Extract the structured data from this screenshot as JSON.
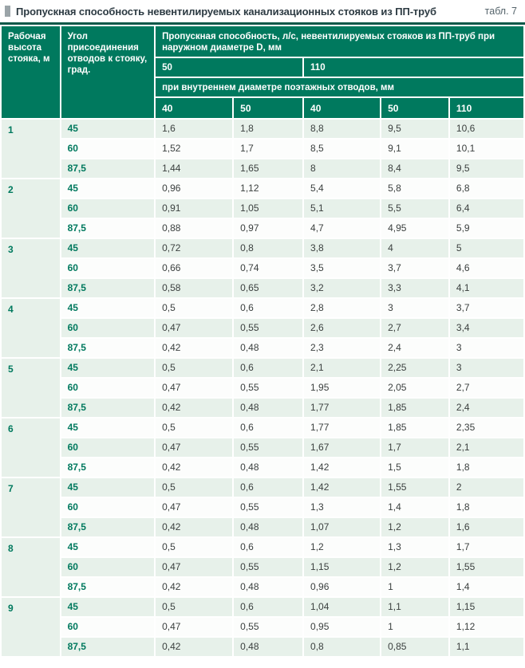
{
  "page": {
    "title": "Пропускная способность невентилируемых канализационных стояков из ПП-труб",
    "table_label": "табл. 7"
  },
  "colors": {
    "header_teal": "#00795E",
    "top_border_dark_teal": "#0A5848",
    "row_tint_green": "#E7F1EA",
    "accent_text_teal": "#00795E"
  },
  "table": {
    "col1_header": "Рабочая высота стояка, м",
    "col2_header": "Угол присоединения отводов к стояку, град.",
    "span_header": "Пропускная способность, л/с, невентилируемых стояков из ПП-труб при наружном диаметре D, мм",
    "diameter_groups": [
      {
        "label": "50",
        "span": 2
      },
      {
        "label": "110",
        "span": 3
      }
    ],
    "inner_header": "при внутреннем диаметре поэтажных отводов, мм",
    "sub_columns": [
      "40",
      "50",
      "40",
      "50",
      "110"
    ],
    "groups": [
      {
        "height": "1",
        "rows": [
          {
            "angle": "45",
            "values": [
              "1,6",
              "1,8",
              "8,8",
              "9,5",
              "10,6"
            ]
          },
          {
            "angle": "60",
            "values": [
              "1,52",
              "1,7",
              "8,5",
              "9,1",
              "10,1"
            ]
          },
          {
            "angle": "87,5",
            "values": [
              "1,44",
              "1,65",
              "8",
              "8,4",
              "9,5"
            ]
          }
        ]
      },
      {
        "height": "2",
        "rows": [
          {
            "angle": "45",
            "values": [
              "0,96",
              "1,12",
              "5,4",
              "5,8",
              "6,8"
            ]
          },
          {
            "angle": "60",
            "values": [
              "0,91",
              "1,05",
              "5,1",
              "5,5",
              "6,4"
            ]
          },
          {
            "angle": "87,5",
            "values": [
              "0,88",
              "0,97",
              "4,7",
              "4,95",
              "5,9"
            ]
          }
        ]
      },
      {
        "height": "3",
        "rows": [
          {
            "angle": "45",
            "values": [
              "0,72",
              "0,8",
              "3,8",
              "4",
              "5"
            ]
          },
          {
            "angle": "60",
            "values": [
              "0,66",
              "0,74",
              "3,5",
              "3,7",
              "4,6"
            ]
          },
          {
            "angle": "87,5",
            "values": [
              "0,58",
              "0,65",
              "3,2",
              "3,3",
              "4,1"
            ]
          }
        ]
      },
      {
        "height": "4",
        "rows": [
          {
            "angle": "45",
            "values": [
              "0,5",
              "0,6",
              "2,8",
              "3",
              "3,7"
            ]
          },
          {
            "angle": "60",
            "values": [
              "0,47",
              "0,55",
              "2,6",
              "2,7",
              "3,4"
            ]
          },
          {
            "angle": "87,5",
            "values": [
              "0,42",
              "0,48",
              "2,3",
              "2,4",
              "3"
            ]
          }
        ]
      },
      {
        "height": "5",
        "rows": [
          {
            "angle": "45",
            "values": [
              "0,5",
              "0,6",
              "2,1",
              "2,25",
              "3"
            ]
          },
          {
            "angle": "60",
            "values": [
              "0,47",
              "0,55",
              "1,95",
              "2,05",
              "2,7"
            ]
          },
          {
            "angle": "87,5",
            "values": [
              "0,42",
              "0,48",
              "1,77",
              "1,85",
              "2,4"
            ]
          }
        ]
      },
      {
        "height": "6",
        "rows": [
          {
            "angle": "45",
            "values": [
              "0,5",
              "0,6",
              "1,77",
              "1,85",
              "2,35"
            ]
          },
          {
            "angle": "60",
            "values": [
              "0,47",
              "0,55",
              "1,67",
              "1,7",
              "2,1"
            ]
          },
          {
            "angle": "87,5",
            "values": [
              "0,42",
              "0,48",
              "1,42",
              "1,5",
              "1,8"
            ]
          }
        ]
      },
      {
        "height": "7",
        "rows": [
          {
            "angle": "45",
            "values": [
              "0,5",
              "0,6",
              "1,42",
              "1,55",
              "2"
            ]
          },
          {
            "angle": "60",
            "values": [
              "0,47",
              "0,55",
              "1,3",
              "1,4",
              "1,8"
            ]
          },
          {
            "angle": "87,5",
            "values": [
              "0,42",
              "0,48",
              "1,07",
              "1,2",
              "1,6"
            ]
          }
        ]
      },
      {
        "height": "8",
        "rows": [
          {
            "angle": "45",
            "values": [
              "0,5",
              "0,6",
              "1,2",
              "1,3",
              "1,7"
            ]
          },
          {
            "angle": "60",
            "values": [
              "0,47",
              "0,55",
              "1,15",
              "1,2",
              "1,55"
            ]
          },
          {
            "angle": "87,5",
            "values": [
              "0,42",
              "0,48",
              "0,96",
              "1",
              "1,4"
            ]
          }
        ]
      },
      {
        "height": "9",
        "rows": [
          {
            "angle": "45",
            "values": [
              "0,5",
              "0,6",
              "1,04",
              "1,1",
              "1,15"
            ]
          },
          {
            "angle": "60",
            "values": [
              "0,47",
              "0,55",
              "0,95",
              "1",
              "1,12"
            ]
          },
          {
            "angle": "87,5",
            "values": [
              "0,42",
              "0,48",
              "0,8",
              "0,85",
              "1,1"
            ]
          }
        ]
      }
    ]
  }
}
